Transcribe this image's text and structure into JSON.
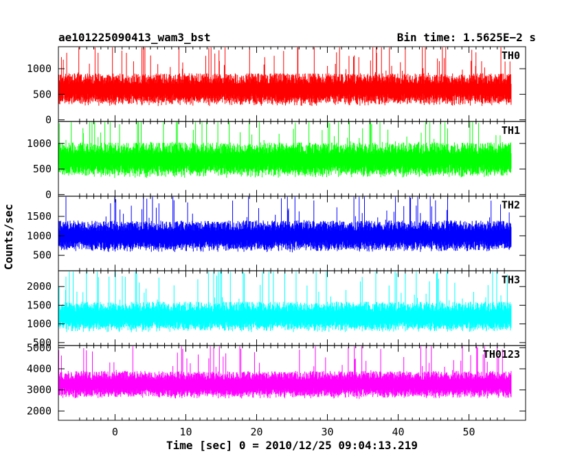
{
  "chart_data": {
    "type": "line",
    "title": "ae101225090413_wam3_bst",
    "bin_time_label": "Bin time: 1.5625E−2 s",
    "xlabel": "Time [sec] 0 = 2010/12/25 09:04:13.219",
    "ylabel": "Counts/sec",
    "xlim": [
      -8,
      58
    ],
    "x_range_data": [
      -8,
      56
    ],
    "x_ticks": [
      0,
      10,
      20,
      30,
      40,
      50
    ],
    "grid": false,
    "panels": [
      {
        "name": "TH0",
        "color": "#ff0000",
        "ylim": [
          -30,
          1430
        ],
        "ticks": [
          0,
          500,
          1000
        ],
        "baseline": 520,
        "amp": 260,
        "spike": 900
      },
      {
        "name": "TH1",
        "color": "#00ff00",
        "ylim": [
          -30,
          1430
        ],
        "ticks": [
          0,
          500,
          1000
        ],
        "baseline": 600,
        "amp": 280,
        "spike": 760
      },
      {
        "name": "TH2",
        "color": "#0000ff",
        "ylim": [
          100,
          2020
        ],
        "ticks": [
          500,
          1000,
          1500
        ],
        "baseline": 900,
        "amp": 330,
        "spike": 950
      },
      {
        "name": "TH3",
        "color": "#00ffff",
        "ylim": [
          420,
          2420
        ],
        "ticks": [
          500,
          1000,
          1500,
          2000
        ],
        "baseline": 1100,
        "amp": 330,
        "spike": 1300
      },
      {
        "name": "TH0123",
        "color": "#ff00ff",
        "ylim": [
          1560,
          5100
        ],
        "ticks": [
          2000,
          3000,
          4000,
          5000
        ],
        "baseline": 3100,
        "amp": 530,
        "spike": 1800
      }
    ]
  }
}
